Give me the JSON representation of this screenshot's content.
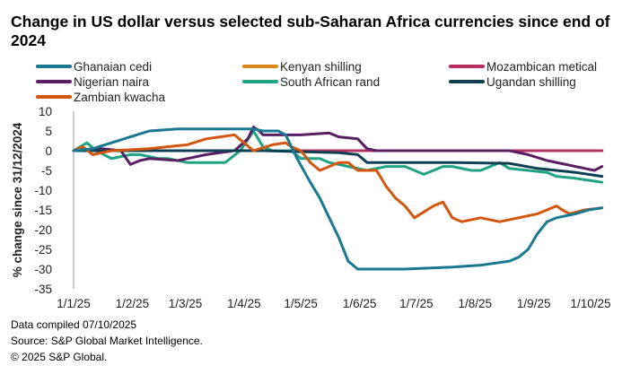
{
  "footer": [
    "Data compiled 07/10/2025",
    "Source: S&P Global Market Intelligence.",
    "© 2025 S&P Global."
  ],
  "chart_data": {
    "type": "line",
    "title": "Change in US dollar versus selected sub-Saharan Africa currencies since end of 2024",
    "xlabel": "",
    "ylabel": "% change since  31/12/2024",
    "ylim": [
      -35,
      10
    ],
    "yticks": [
      10,
      5,
      0,
      -5,
      -10,
      -15,
      -20,
      -25,
      -30,
      -35
    ],
    "x_unit": "days since 1 Jan 2025",
    "xlim": [
      0,
      279
    ],
    "xticks": [
      {
        "day": 0,
        "label": "1/1/25"
      },
      {
        "day": 31,
        "label": "1/2/25"
      },
      {
        "day": 59,
        "label": "1/3/25"
      },
      {
        "day": 90,
        "label": "1/4/25"
      },
      {
        "day": 120,
        "label": "1/5/25"
      },
      {
        "day": 151,
        "label": "1/6/25"
      },
      {
        "day": 181,
        "label": "1/7/25"
      },
      {
        "day": 212,
        "label": "1/8/25"
      },
      {
        "day": 243,
        "label": "1/9/25"
      },
      {
        "day": 273,
        "label": "1/10/25"
      }
    ],
    "grid": false,
    "legend_position": "top",
    "series": [
      {
        "name": "Ghanaian cedi",
        "color": "#1A7890",
        "x": [
          0,
          10,
          20,
          30,
          40,
          55,
          70,
          95,
          100,
          108,
          112,
          118,
          125,
          130,
          135,
          140,
          145,
          150,
          160,
          175,
          200,
          215,
          230,
          235,
          240,
          245,
          250,
          255,
          265,
          272,
          279
        ],
        "y": [
          0,
          0.5,
          2,
          3.5,
          5,
          5.5,
          5.5,
          5.5,
          5,
          5,
          4,
          -2,
          -8,
          -12,
          -17,
          -22,
          -28,
          -30,
          -30,
          -30,
          -29.5,
          -29,
          -28,
          -27,
          -25,
          -21,
          -18,
          -17,
          -16,
          -15,
          -14.5
        ]
      },
      {
        "name": "Kenyan shilling",
        "color": "#D9861A",
        "x": [
          0,
          279
        ],
        "y": [
          0,
          0
        ]
      },
      {
        "name": "Mozambican metical",
        "color": "#B52F62",
        "x": [
          0,
          279
        ],
        "y": [
          0,
          0
        ]
      },
      {
        "name": "Nigerian naira",
        "color": "#5A1E62",
        "x": [
          0,
          15,
          25,
          30,
          35,
          40,
          55,
          60,
          70,
          85,
          92,
          95,
          98,
          100,
          120,
          135,
          140,
          150,
          155,
          160,
          200,
          230,
          240,
          250,
          260,
          270,
          275,
          279
        ],
        "y": [
          0,
          0.5,
          0,
          -3.5,
          -2.5,
          -2,
          -2.5,
          -2,
          -1,
          0,
          3,
          6,
          5,
          4,
          4,
          4.5,
          3.5,
          3,
          0.5,
          0,
          0,
          0,
          -1,
          -2.5,
          -3.5,
          -4.5,
          -5,
          -4
        ]
      },
      {
        "name": "South African rand",
        "color": "#1FA383",
        "x": [
          0,
          7,
          12,
          20,
          30,
          35,
          45,
          50,
          60,
          70,
          80,
          88,
          95,
          100,
          105,
          115,
          120,
          130,
          135,
          145,
          155,
          165,
          175,
          180,
          185,
          195,
          200,
          210,
          215,
          225,
          230,
          240,
          250,
          255,
          265,
          272,
          279
        ],
        "y": [
          0,
          2,
          0,
          -2,
          -1,
          -1,
          -2,
          -2,
          -3,
          -3,
          -3,
          0,
          5,
          1,
          0,
          0,
          -2,
          -2,
          -3,
          -4,
          -5,
          -4,
          -4,
          -5,
          -6,
          -4,
          -4,
          -5,
          -5,
          -3,
          -4.5,
          -5,
          -5.5,
          -6.5,
          -7,
          -7.5,
          -8
        ]
      },
      {
        "name": "Ugandan shilling",
        "color": "#0F3F52",
        "x": [
          0,
          100,
          140,
          150,
          155,
          160,
          200,
          230,
          245,
          255,
          265,
          279
        ],
        "y": [
          0,
          0,
          -0.5,
          -1,
          -3,
          -3,
          -3,
          -3.2,
          -4.5,
          -5,
          -5.5,
          -6.5
        ]
      },
      {
        "name": "Zambian kwacha",
        "color": "#D2560F",
        "x": [
          0,
          5,
          10,
          20,
          40,
          60,
          70,
          85,
          90,
          95,
          105,
          112,
          115,
          120,
          125,
          130,
          140,
          145,
          150,
          160,
          165,
          170,
          175,
          180,
          190,
          195,
          200,
          205,
          215,
          225,
          235,
          245,
          255,
          258,
          262,
          270,
          279
        ],
        "y": [
          0,
          1,
          -1,
          0,
          0.5,
          1.5,
          3,
          4,
          2,
          0,
          1.5,
          2,
          1,
          0,
          -3,
          -5,
          -3,
          -3,
          -5,
          -5,
          -9,
          -12,
          -14,
          -17,
          -14,
          -13,
          -17,
          -18,
          -17,
          -18,
          -17,
          -16,
          -14,
          -15,
          -16,
          -15,
          -14.5
        ]
      }
    ]
  }
}
